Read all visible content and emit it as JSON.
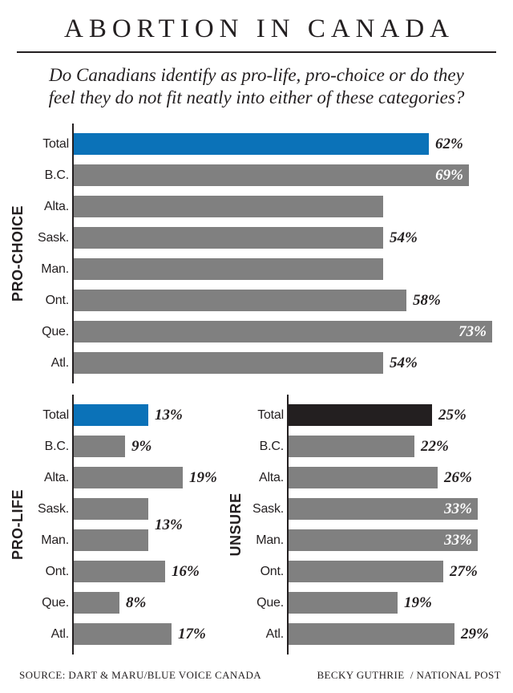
{
  "header": {
    "title": "ABORTION IN CANADA",
    "subtitle_line1": "Do Canadians identify as pro-life, pro-choice or do they",
    "subtitle_line2": "feel they do not fit neatly into either of these categories?"
  },
  "colors": {
    "accent_blue": "#0b72b8",
    "bar_gray": "#808080",
    "bar_black": "#231f20",
    "ink": "#231f20"
  },
  "chart_data": [
    {
      "type": "bar",
      "orientation": "horizontal",
      "title": "PRO-CHOICE",
      "unit": "%",
      "xlim": [
        0,
        80
      ],
      "grid": false,
      "legend": false,
      "categories": [
        "Total",
        "B.C.",
        "Alta.",
        "Sask.",
        "Man.",
        "Ont.",
        "Que.",
        "Atl."
      ],
      "values": [
        62,
        69,
        54,
        54,
        54,
        58,
        73,
        54
      ],
      "value_labels": [
        "62%",
        "69%",
        "",
        "54%",
        "",
        "58%",
        "73%",
        "54%"
      ],
      "label_positions": [
        "outside",
        "inside",
        "none",
        "outside",
        "none",
        "outside",
        "inside",
        "outside"
      ],
      "bar_colors": [
        "#0b72b8",
        "#808080",
        "#808080",
        "#808080",
        "#808080",
        "#808080",
        "#808080",
        "#808080"
      ]
    },
    {
      "type": "bar",
      "orientation": "horizontal",
      "title": "PRO-LIFE",
      "unit": "%",
      "xlim": [
        0,
        80
      ],
      "grid": false,
      "legend": false,
      "categories": [
        "Total",
        "B.C.",
        "Alta.",
        "Sask.",
        "Man.",
        "Ont.",
        "Que.",
        "Atl."
      ],
      "values": [
        13,
        9,
        19,
        13,
        13,
        16,
        8,
        17
      ],
      "value_labels": [
        "13%",
        "9%",
        "19%",
        "13%",
        "",
        "16%",
        "8%",
        "17%"
      ],
      "label_positions": [
        "outside",
        "outside",
        "outside",
        "between",
        "none",
        "outside",
        "outside",
        "outside"
      ],
      "bar_colors": [
        "#0b72b8",
        "#808080",
        "#808080",
        "#808080",
        "#808080",
        "#808080",
        "#808080",
        "#808080"
      ]
    },
    {
      "type": "bar",
      "orientation": "horizontal",
      "title": "UNSURE",
      "unit": "%",
      "xlim": [
        0,
        80
      ],
      "grid": false,
      "legend": false,
      "categories": [
        "Total",
        "B.C.",
        "Alta.",
        "Sask.",
        "Man.",
        "Ont.",
        "Que.",
        "Atl."
      ],
      "values": [
        25,
        22,
        26,
        33,
        33,
        27,
        19,
        29
      ],
      "value_labels": [
        "25%",
        "22%",
        "26%",
        "33%",
        "33%",
        "27%",
        "19%",
        "29%"
      ],
      "label_positions": [
        "outside",
        "outside",
        "outside",
        "inside",
        "inside",
        "outside",
        "outside",
        "outside"
      ],
      "bar_colors": [
        "#231f20",
        "#808080",
        "#808080",
        "#808080",
        "#808080",
        "#808080",
        "#808080",
        "#808080"
      ]
    }
  ],
  "footer": {
    "source": "SOURCE: DART & MARU/BLUE VOICE CANADA",
    "credit": "BECKY GUTHRIE  / NATIONAL POST"
  }
}
